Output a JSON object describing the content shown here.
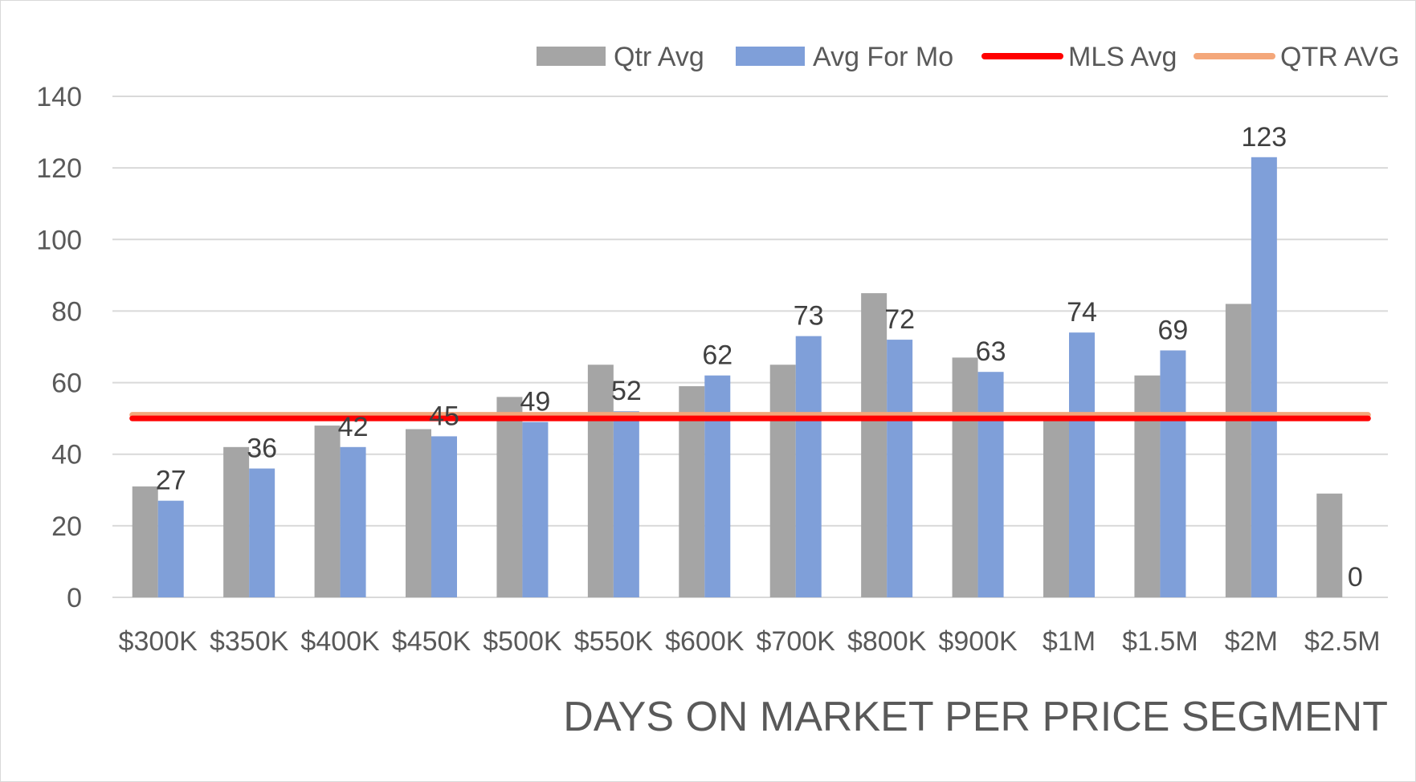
{
  "chart_data": {
    "type": "bar",
    "title": "DAYS ON MARKET PER PRICE SEGMENT",
    "xlabel": "",
    "ylabel": "",
    "ylim": [
      0,
      140
    ],
    "y_ticks": [
      0,
      20,
      40,
      60,
      80,
      100,
      120,
      140
    ],
    "grid": true,
    "legend_position": "top-right",
    "categories": [
      "$300K",
      "$350K",
      "$400K",
      "$450K",
      "$500K",
      "$550K",
      "$600K",
      "$700K",
      "$800K",
      "$900K",
      "$1M",
      "$1.5M",
      "$2M",
      "$2.5M"
    ],
    "series": [
      {
        "name": "Qtr Avg",
        "type": "bar",
        "color": "#a5a5a5",
        "values": [
          31,
          42,
          48,
          47,
          56,
          65,
          59,
          65,
          85,
          67,
          51,
          62,
          82,
          29
        ]
      },
      {
        "name": "Avg For Mo",
        "type": "bar",
        "color": "#7f9fd9",
        "values": [
          27,
          36,
          42,
          45,
          49,
          52,
          62,
          73,
          72,
          63,
          74,
          69,
          123,
          0
        ],
        "data_labels": [
          "27",
          "36",
          "42",
          "45",
          "49",
          "52",
          "62",
          "73",
          "72",
          "63",
          "74",
          "69",
          "123",
          "0"
        ]
      },
      {
        "name": "MLS Avg",
        "type": "line",
        "color": "#ff0000",
        "values": [
          50,
          50,
          50,
          50,
          50,
          50,
          50,
          50,
          50,
          50,
          50,
          50,
          50,
          50
        ]
      },
      {
        "name": "QTR AVG",
        "type": "line",
        "color": "#f4a77a",
        "values": [
          51,
          51,
          51,
          51,
          51,
          51,
          51,
          51,
          51,
          51,
          51,
          51,
          51,
          51
        ]
      }
    ]
  }
}
